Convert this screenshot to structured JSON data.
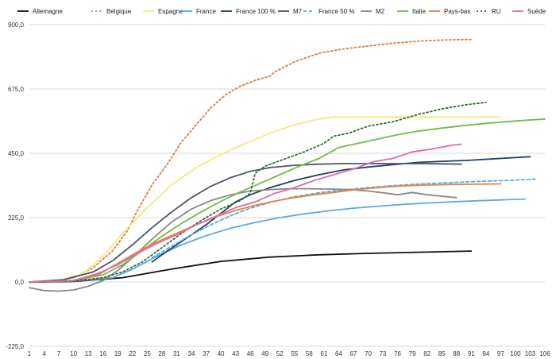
{
  "chart_data": {
    "type": "line",
    "title": "",
    "xlabel": "",
    "ylabel": "",
    "ylim": [
      -225,
      900
    ],
    "xlim": [
      1,
      106
    ],
    "yticks": [
      -225,
      0,
      225,
      450,
      675,
      900
    ],
    "ytick_labels": [
      "-225,0",
      "0,0",
      "225,0",
      "450,0",
      "675,0",
      "900,0"
    ],
    "xticks": [
      1,
      4,
      7,
      10,
      13,
      16,
      19,
      22,
      25,
      28,
      31,
      34,
      37,
      40,
      43,
      46,
      49,
      52,
      55,
      58,
      61,
      64,
      67,
      70,
      73,
      76,
      79,
      82,
      85,
      88,
      91,
      94,
      97,
      100,
      103,
      106
    ],
    "grid": "horizontal",
    "legend": "top",
    "series": [
      {
        "name": "Allemagne",
        "color": "#111111",
        "dash": "solid",
        "x": [
          1,
          10,
          20,
          30,
          40,
          50,
          60,
          70,
          80,
          91
        ],
        "values": [
          -1,
          2,
          15,
          45,
          72,
          87,
          95,
          100,
          104,
          108
        ]
      },
      {
        "name": "Belgique",
        "color": "#e07b3a",
        "dash": "dotted",
        "x": [
          1,
          6,
          10,
          14,
          18,
          21,
          23,
          26,
          29,
          32,
          35,
          38,
          41,
          44,
          47,
          50,
          51,
          55,
          60,
          65,
          70,
          75,
          80,
          85,
          90,
          91
        ],
        "values": [
          0,
          3,
          15,
          50,
          110,
          180,
          250,
          340,
          410,
          490,
          550,
          610,
          655,
          685,
          705,
          720,
          735,
          770,
          800,
          815,
          825,
          835,
          842,
          846,
          848,
          848
        ]
      },
      {
        "name": "Espagne",
        "color": "#f2ea80",
        "dash": "solid",
        "x": [
          1,
          7,
          12,
          16,
          20,
          25,
          30,
          35,
          40,
          45,
          50,
          55,
          60,
          63,
          70,
          80,
          90,
          97
        ],
        "values": [
          0,
          5,
          30,
          90,
          170,
          260,
          340,
          400,
          445,
          485,
          520,
          550,
          570,
          577,
          577,
          577,
          577,
          577
        ]
      },
      {
        "name": "France",
        "color": "#5aa9e6",
        "dash": "solid",
        "x": [
          1,
          10,
          18,
          22,
          27,
          32,
          37,
          42,
          47,
          52,
          57,
          62,
          67,
          72,
          77,
          82,
          87,
          92,
          97,
          102
        ],
        "values": [
          0,
          3,
          15,
          45,
          90,
          130,
          162,
          188,
          208,
          225,
          238,
          249,
          258,
          265,
          271,
          276,
          280,
          284,
          287,
          290
        ]
      },
      {
        "name": "France 100 %",
        "color": "#213f70",
        "dash": "solid",
        "x": [
          26,
          28,
          31,
          34,
          37,
          40,
          43,
          46,
          50,
          55,
          60,
          65,
          70,
          75,
          80,
          85,
          90,
          95,
          100,
          103
        ],
        "values": [
          70,
          95,
          130,
          165,
          200,
          240,
          280,
          305,
          330,
          355,
          375,
          392,
          402,
          410,
          418,
          422,
          425,
          430,
          435,
          438
        ]
      },
      {
        "name": "M7",
        "color": "#4d5566",
        "dash": "solid",
        "x": [
          1,
          8,
          14,
          18,
          22,
          26,
          30,
          34,
          38,
          42,
          46,
          50,
          55,
          60,
          65,
          70,
          75,
          80,
          85,
          89
        ],
        "values": [
          0,
          8,
          35,
          75,
          130,
          190,
          245,
          295,
          335,
          365,
          387,
          400,
          408,
          412,
          414,
          414,
          414,
          414,
          413,
          412
        ]
      },
      {
        "name": "France 50 %",
        "color": "#5aa9e6",
        "dash": "dashed",
        "x": [
          26,
          30,
          34,
          38,
          42,
          46,
          50,
          55,
          60,
          65,
          70,
          75,
          80,
          85,
          90,
          95,
          100,
          104
        ],
        "values": [
          85,
          125,
          165,
          200,
          232,
          258,
          278,
          298,
          312,
          322,
          330,
          337,
          342,
          346,
          350,
          353,
          356,
          360
        ]
      },
      {
        "name": "M2",
        "color": "#888888",
        "dash": "solid",
        "x": [
          1,
          4,
          7,
          10,
          13,
          16,
          19,
          22,
          26,
          30,
          34,
          38,
          42,
          46,
          50,
          54,
          58,
          62,
          66,
          70,
          73,
          76,
          79,
          82,
          85,
          88
        ],
        "values": [
          -20,
          -30,
          -32,
          -28,
          -15,
          5,
          40,
          85,
          150,
          210,
          255,
          285,
          305,
          318,
          323,
          326,
          326,
          325,
          323,
          318,
          312,
          305,
          313,
          305,
          300,
          295
        ]
      },
      {
        "name": "Italie",
        "color": "#6fbd48",
        "dash": "solid",
        "x": [
          1,
          10,
          16,
          20,
          24,
          28,
          32,
          36,
          40,
          44,
          48,
          52,
          56,
          60,
          64,
          68,
          72,
          76,
          80,
          85,
          90,
          95,
          100,
          106
        ],
        "values": [
          0,
          5,
          25,
          60,
          110,
          160,
          205,
          245,
          282,
          315,
          345,
          375,
          405,
          432,
          470,
          485,
          500,
          515,
          527,
          538,
          548,
          556,
          563,
          570
        ]
      },
      {
        "name": "Pays-bas",
        "color": "#e8843e",
        "dash": "solid",
        "x": [
          1,
          10,
          15,
          19,
          23,
          27,
          31,
          35,
          39,
          43,
          47,
          51,
          55,
          59,
          63,
          67,
          72,
          77,
          82,
          87,
          92,
          97
        ],
        "values": [
          0,
          3,
          25,
          65,
          105,
          140,
          170,
          200,
          228,
          250,
          268,
          283,
          295,
          305,
          313,
          322,
          330,
          336,
          339,
          341,
          342,
          343
        ]
      },
      {
        "name": "RU",
        "color": "#2f6b2f",
        "dash": "dotted",
        "x": [
          1,
          10,
          16,
          20,
          24,
          28,
          32,
          36,
          40,
          44,
          46,
          47,
          49,
          53,
          57,
          61,
          63,
          66,
          70,
          75,
          80,
          85,
          90,
          94
        ],
        "values": [
          0,
          3,
          15,
          35,
          70,
          120,
          170,
          215,
          255,
          285,
          310,
          380,
          405,
          430,
          455,
          485,
          510,
          520,
          545,
          560,
          585,
          605,
          620,
          628
        ]
      },
      {
        "name": "Suède",
        "color": "#e06aa8",
        "dash": "solid",
        "x": [
          1,
          10,
          15,
          19,
          23,
          27,
          31,
          35,
          39,
          43,
          47,
          51,
          55,
          59,
          63,
          67,
          71,
          75,
          79,
          83,
          87,
          89
        ],
        "values": [
          0,
          5,
          30,
          60,
          100,
          135,
          165,
          200,
          230,
          260,
          280,
          310,
          330,
          355,
          375,
          395,
          420,
          432,
          455,
          465,
          478,
          482
        ]
      }
    ]
  }
}
